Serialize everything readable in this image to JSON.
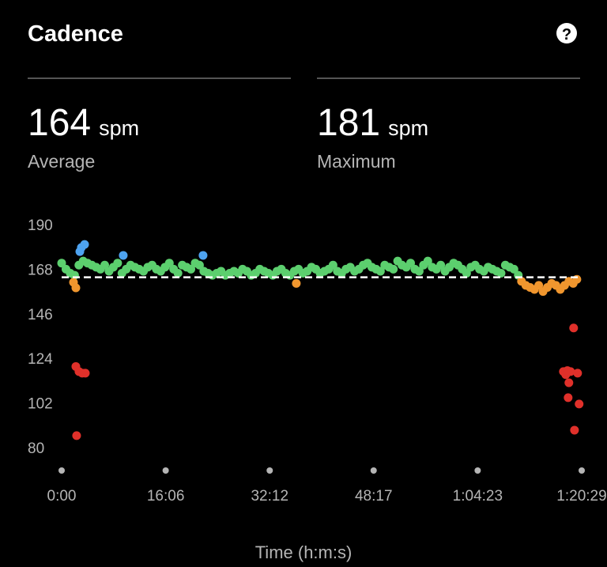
{
  "chart_data": {
    "type": "scatter",
    "title": "Cadence",
    "help_icon": "?",
    "stats": [
      {
        "value": 164,
        "unit": "spm",
        "label": "Average"
      },
      {
        "value": 181,
        "unit": "spm",
        "label": "Maximum"
      }
    ],
    "xlabel": "Time (h:m:s)",
    "xlim": [
      0,
      4829
    ],
    "ylim": [
      72,
      196
    ],
    "xticks": [
      {
        "value": 0,
        "label": "0:00"
      },
      {
        "value": 966,
        "label": "16:06"
      },
      {
        "value": 1932,
        "label": "32:12"
      },
      {
        "value": 2897,
        "label": "48:17"
      },
      {
        "value": 3863,
        "label": "1:04:23"
      },
      {
        "value": 4829,
        "label": "1:20:29"
      }
    ],
    "yticks": [
      80,
      102,
      124,
      146,
      168,
      190
    ],
    "series": [
      {
        "color": "#5ccf6e",
        "x": [
          0,
          40,
          80,
          120,
          160,
          200,
          240,
          280,
          320,
          360,
          400,
          440,
          480,
          520,
          560,
          600,
          640,
          680,
          720,
          760,
          800,
          840,
          880,
          920,
          960,
          1000,
          1040,
          1080,
          1120,
          1160,
          1200,
          1240,
          1280,
          1320,
          1360,
          1400,
          1440,
          1480,
          1520,
          1560,
          1600,
          1640,
          1680,
          1720,
          1760,
          1800,
          1840,
          1880,
          1920,
          1960,
          2000,
          2040,
          2080,
          2120,
          2160,
          2200,
          2240,
          2280,
          2320,
          2360,
          2400,
          2440,
          2480,
          2520,
          2560,
          2600,
          2640,
          2680,
          2720,
          2760,
          2800,
          2840,
          2880,
          2920,
          2960,
          3000,
          3040,
          3080,
          3120,
          3160,
          3200,
          3240,
          3280,
          3320,
          3360,
          3400,
          3440,
          3480,
          3520,
          3560,
          3600,
          3640,
          3680,
          3720,
          3760,
          3800,
          3840,
          3880,
          3920,
          3960,
          4000,
          4040,
          4080,
          4120,
          4160,
          4200,
          4240
        ],
        "values": [
          171,
          168,
          166,
          165,
          170,
          172,
          171,
          170,
          169,
          168,
          170,
          167,
          169,
          171,
          166,
          168,
          170,
          169,
          168,
          167,
          169,
          170,
          168,
          167,
          169,
          171,
          168,
          166,
          170,
          169,
          168,
          171,
          170,
          167,
          166,
          165,
          166,
          167,
          165,
          166,
          167,
          166,
          168,
          167,
          165,
          166,
          168,
          167,
          166,
          165,
          167,
          168,
          166,
          165,
          167,
          168,
          166,
          167,
          169,
          168,
          166,
          167,
          168,
          170,
          167,
          166,
          168,
          169,
          167,
          168,
          170,
          171,
          169,
          168,
          167,
          170,
          169,
          168,
          172,
          170,
          169,
          171,
          168,
          167,
          170,
          172,
          169,
          168,
          170,
          167,
          169,
          171,
          170,
          168,
          166,
          169,
          170,
          168,
          167,
          169,
          168,
          167,
          166,
          170,
          169,
          168,
          165
        ]
      },
      {
        "color": "#f0962e",
        "x": [
          110,
          132,
          2179,
          4270,
          4310,
          4350,
          4390,
          4430,
          4470,
          4510,
          4550,
          4590,
          4630,
          4670,
          4710,
          4750,
          4784
        ],
        "values": [
          161.5,
          158.8,
          161,
          162,
          160,
          159,
          158,
          160,
          157,
          159,
          161,
          160,
          158,
          160,
          162,
          161,
          163
        ]
      },
      {
        "color": "#e0302a",
        "x": [
          132,
          139,
          161,
          191,
          220,
          4659,
          4681,
          4696,
          4703,
          4710,
          4725,
          4754,
          4762,
          4791,
          4805
        ],
        "values": [
          120,
          85.9,
          117.5,
          116.7,
          116.7,
          117.5,
          116,
          118,
          104.6,
          112,
          117.5,
          139,
          88.6,
          116.7,
          101.5
        ]
      },
      {
        "color": "#4ea3f0",
        "x": [
          169,
          183,
          213,
          572,
          1313
        ],
        "values": [
          176.7,
          178.7,
          180.2,
          174.8,
          174.8
        ]
      }
    ]
  }
}
